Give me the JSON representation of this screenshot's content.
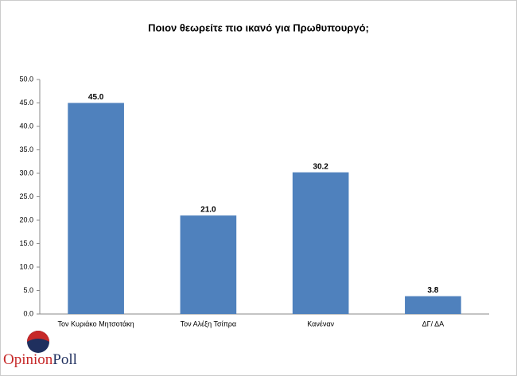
{
  "chart_data": {
    "type": "bar",
    "title": "Ποιον θεωρείτε πιο ικανό για Πρωθυπουργό;",
    "categories": [
      "Τον Κυριάκο Μητσοτάκη",
      "Τον Αλέξη Τσίπρα",
      "Κανέναν",
      "ΔΓ/ ΔΑ"
    ],
    "values": [
      45.0,
      21.0,
      30.2,
      3.8
    ],
    "value_labels": [
      "45.0",
      "21.0",
      "30.2",
      "3.8"
    ],
    "color": "#4f81bd",
    "ylim": [
      0,
      50
    ],
    "yticks": [
      {
        "value": 0,
        "label": "0.0"
      },
      {
        "value": 5,
        "label": "5.0"
      },
      {
        "value": 10,
        "label": "10.0"
      },
      {
        "value": 15,
        "label": "15.0"
      },
      {
        "value": 20,
        "label": "20.0"
      },
      {
        "value": 25,
        "label": "25.0"
      },
      {
        "value": 30,
        "label": "30.0"
      },
      {
        "value": 35,
        "label": "35.0"
      },
      {
        "value": 40,
        "label": "40.0"
      },
      {
        "value": 45,
        "label": "45.0"
      },
      {
        "value": 50,
        "label": "50.0"
      }
    ],
    "grid": false
  },
  "logo": {
    "first": "Opinion",
    "second": "Poll"
  }
}
